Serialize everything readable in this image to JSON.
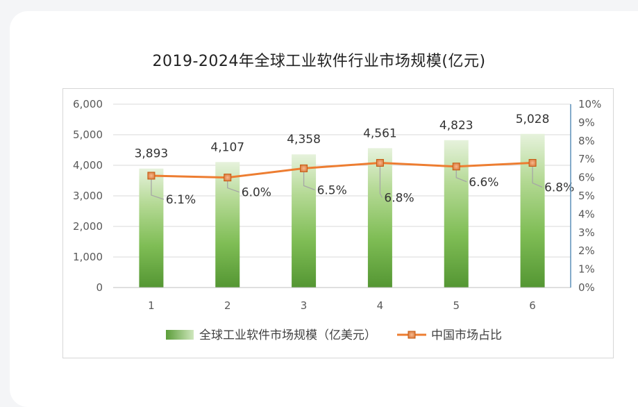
{
  "chart_data": {
    "type": "bar",
    "title": "2019-2024年全球工业软件行业市场规模(亿元)",
    "categories": [
      "1",
      "2",
      "3",
      "4",
      "5",
      "6"
    ],
    "series": [
      {
        "name": "全球工业软件市场规模（亿美元）",
        "type": "bar",
        "axis": "left",
        "values": [
          3893,
          4107,
          4358,
          4561,
          4823,
          5028
        ],
        "labels": [
          "3,893",
          "4,107",
          "4,358",
          "4,561",
          "4,823",
          "5,028"
        ],
        "color": "#6aaa45"
      },
      {
        "name": "中国市场占比",
        "type": "line",
        "axis": "right",
        "values": [
          6.1,
          6.0,
          6.5,
          6.8,
          6.6,
          6.8
        ],
        "labels": [
          "6.1%",
          "6.0%",
          "6.5%",
          "6.8%",
          "6.6%",
          "6.8%"
        ],
        "color": "#ed7d31"
      }
    ],
    "y_left": {
      "ylim": [
        0,
        6000
      ],
      "ticks": [
        "0",
        "1,000",
        "2,000",
        "3,000",
        "4,000",
        "5,000",
        "6,000"
      ]
    },
    "y_right": {
      "ylim": [
        0,
        10
      ],
      "ticks": [
        "0%",
        "1%",
        "2%",
        "3%",
        "4%",
        "5%",
        "6%",
        "7%",
        "8%",
        "9%",
        "10%"
      ]
    },
    "grid": true,
    "legend_position": "bottom"
  }
}
